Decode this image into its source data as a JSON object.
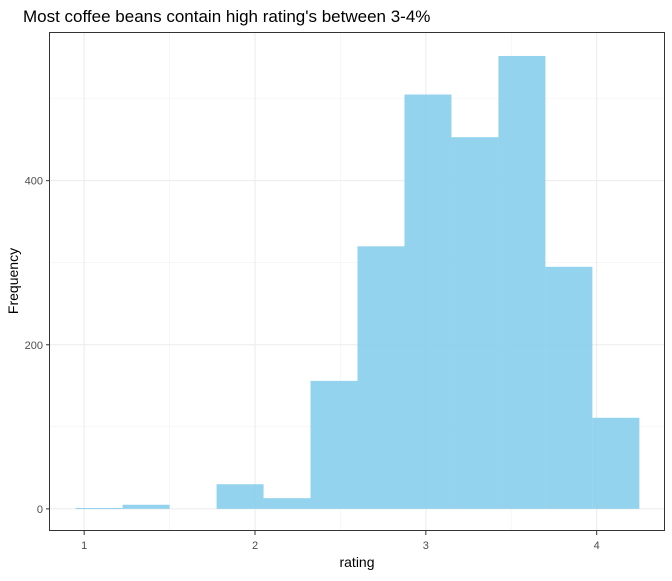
{
  "chart_data": {
    "type": "bar",
    "title": "Most coffee beans contain high rating's between 3-4%",
    "xlabel": "rating",
    "ylabel": "Frequency",
    "x_ticks": [
      1,
      2,
      3,
      4
    ],
    "y_ticks": [
      0,
      200,
      400
    ],
    "xlim": [
      0.8,
      4.4
    ],
    "ylim": [
      -27,
      580
    ],
    "grid": true,
    "bar_color": "#87CEEB",
    "bins": [
      {
        "x0": 0.95,
        "x1": 1.225,
        "count": 1
      },
      {
        "x0": 1.225,
        "x1": 1.5,
        "count": 5
      },
      {
        "x0": 1.5,
        "x1": 1.775,
        "count": 0
      },
      {
        "x0": 1.775,
        "x1": 2.05,
        "count": 30
      },
      {
        "x0": 2.05,
        "x1": 2.325,
        "count": 13
      },
      {
        "x0": 2.325,
        "x1": 2.6,
        "count": 156
      },
      {
        "x0": 2.6,
        "x1": 2.875,
        "count": 320
      },
      {
        "x0": 2.875,
        "x1": 3.15,
        "count": 505
      },
      {
        "x0": 3.15,
        "x1": 3.425,
        "count": 453
      },
      {
        "x0": 3.425,
        "x1": 3.7,
        "count": 552
      },
      {
        "x0": 3.7,
        "x1": 3.975,
        "count": 295
      },
      {
        "x0": 3.975,
        "x1": 4.25,
        "count": 111
      }
    ]
  }
}
